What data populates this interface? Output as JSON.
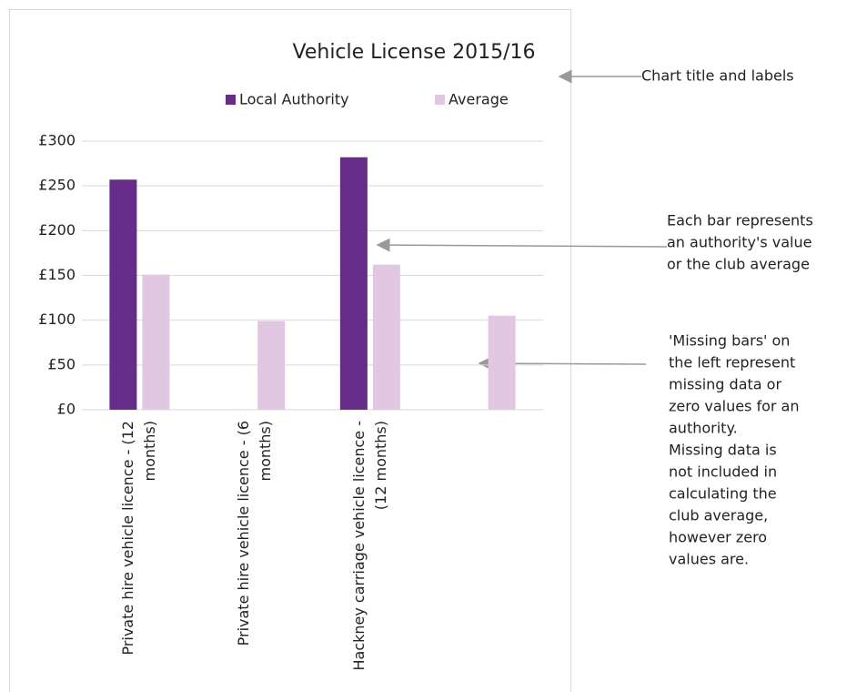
{
  "chart_data": {
    "type": "bar",
    "title": "Vehicle License 2015/16",
    "categories": [
      "Private hire vehicle licence - (12 months)",
      "Private hire vehicle licence - (6 months)",
      "Hackney carriage vehicle licence - (12 months)",
      null
    ],
    "series": [
      {
        "name": "Local Authority",
        "color": "#652d89",
        "values": [
          257,
          null,
          282,
          null
        ]
      },
      {
        "name": "Average",
        "color": "#e2c7e3",
        "values": [
          151,
          99,
          162,
          105
        ]
      }
    ],
    "ylim": [
      0,
      300
    ],
    "yticks": [
      {
        "value": 0,
        "label": "£0"
      },
      {
        "value": 50,
        "label": "£50"
      },
      {
        "value": 100,
        "label": "£100"
      },
      {
        "value": 150,
        "label": "£150"
      },
      {
        "value": 200,
        "label": "£200"
      },
      {
        "value": 250,
        "label": "£250"
      },
      {
        "value": 300,
        "label": "£300"
      }
    ],
    "grid": true,
    "legend": "top"
  },
  "annotations": [
    {
      "lines": [
        "Chart title and labels"
      ]
    },
    {
      "lines": [
        "Each bar represents",
        "an authority's value",
        "or the club average"
      ]
    },
    {
      "lines": [
        "'Missing bars' on",
        "the left represent",
        "missing data or",
        "zero values for an",
        "authority.",
        "Missing data is",
        "not included in",
        "calculating the",
        "club average,",
        "however zero",
        "values are."
      ]
    }
  ]
}
